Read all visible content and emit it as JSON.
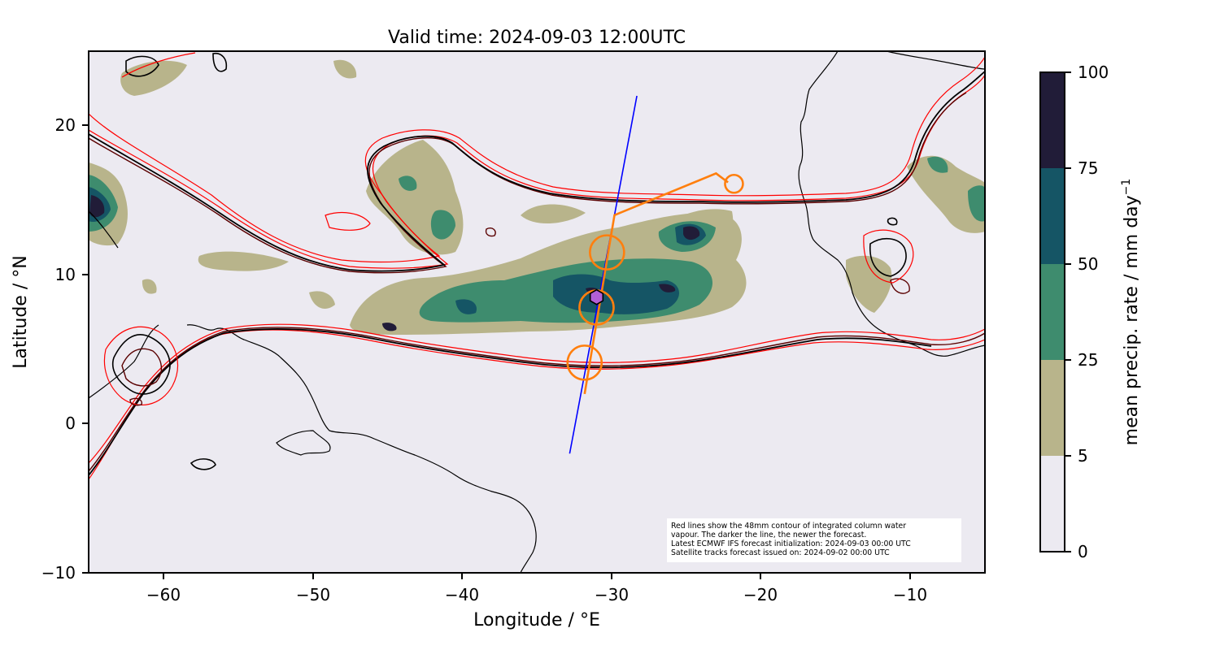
{
  "title": "Valid time: 2024-09-03 12:00UTC",
  "xlabel": "Longitude / °E",
  "ylabel": "Latitude / °N",
  "x_ticks": [
    "−60",
    "−50",
    "−40",
    "−30",
    "−20",
    "−10"
  ],
  "y_ticks": [
    "20",
    "10",
    "0",
    "−10"
  ],
  "colorbar": {
    "label_text": "mean precip. rate / mm day",
    "label_exponent": "−1",
    "ticks": [
      "100",
      "75",
      "50",
      "25",
      "5",
      "0"
    ],
    "levels": [
      {
        "from": 0,
        "to": 5,
        "color": "#eceaf1"
      },
      {
        "from": 5,
        "to": 25,
        "color": "#b8b48b"
      },
      {
        "from": 25,
        "to": 50,
        "color": "#3e8c6e"
      },
      {
        "from": 50,
        "to": 75,
        "color": "#155565"
      },
      {
        "from": 75,
        "to": 100,
        "color": "#211c38"
      }
    ]
  },
  "note_lines": [
    "Red lines show the 48mm contour of integrated column water",
    "vapour. The darker the line, the newer the forecast.",
    "Latest ECMWF IFS forecast initialization: 2024-09-03 00:00 UTC",
    "Satellite tracks forecast issued on: 2024-09-02 00:00 UTC"
  ],
  "map": {
    "extent": {
      "lon": [
        -65,
        -5
      ],
      "lat": [
        -10,
        25
      ]
    },
    "colors": {
      "ocean": "#eceaf1",
      "coast": "#000000",
      "satellite_track": "#0000ff",
      "flight_track": "#ff7f0e",
      "ship_marker": "#b25fd6",
      "iwv_newest": "#000000",
      "iwv_mid": "#5a0000",
      "iwv_old": "#ff0000"
    },
    "satellite_track": {
      "from": [
        -32.8,
        -2
      ],
      "to": [
        -28.3,
        22
      ]
    },
    "flight_track": [
      [
        -31.8,
        2
      ],
      [
        -29.8,
        14
      ],
      [
        -23,
        16.8
      ],
      [
        -22.2,
        16.2
      ]
    ],
    "flight_circles": [
      [
        -31.8,
        4.1
      ],
      [
        -31.0,
        7.8
      ],
      [
        -30.3,
        11.5
      ],
      [
        -21.8,
        16.1
      ]
    ],
    "ship_position": [
      -31.0,
      8.5
    ]
  }
}
